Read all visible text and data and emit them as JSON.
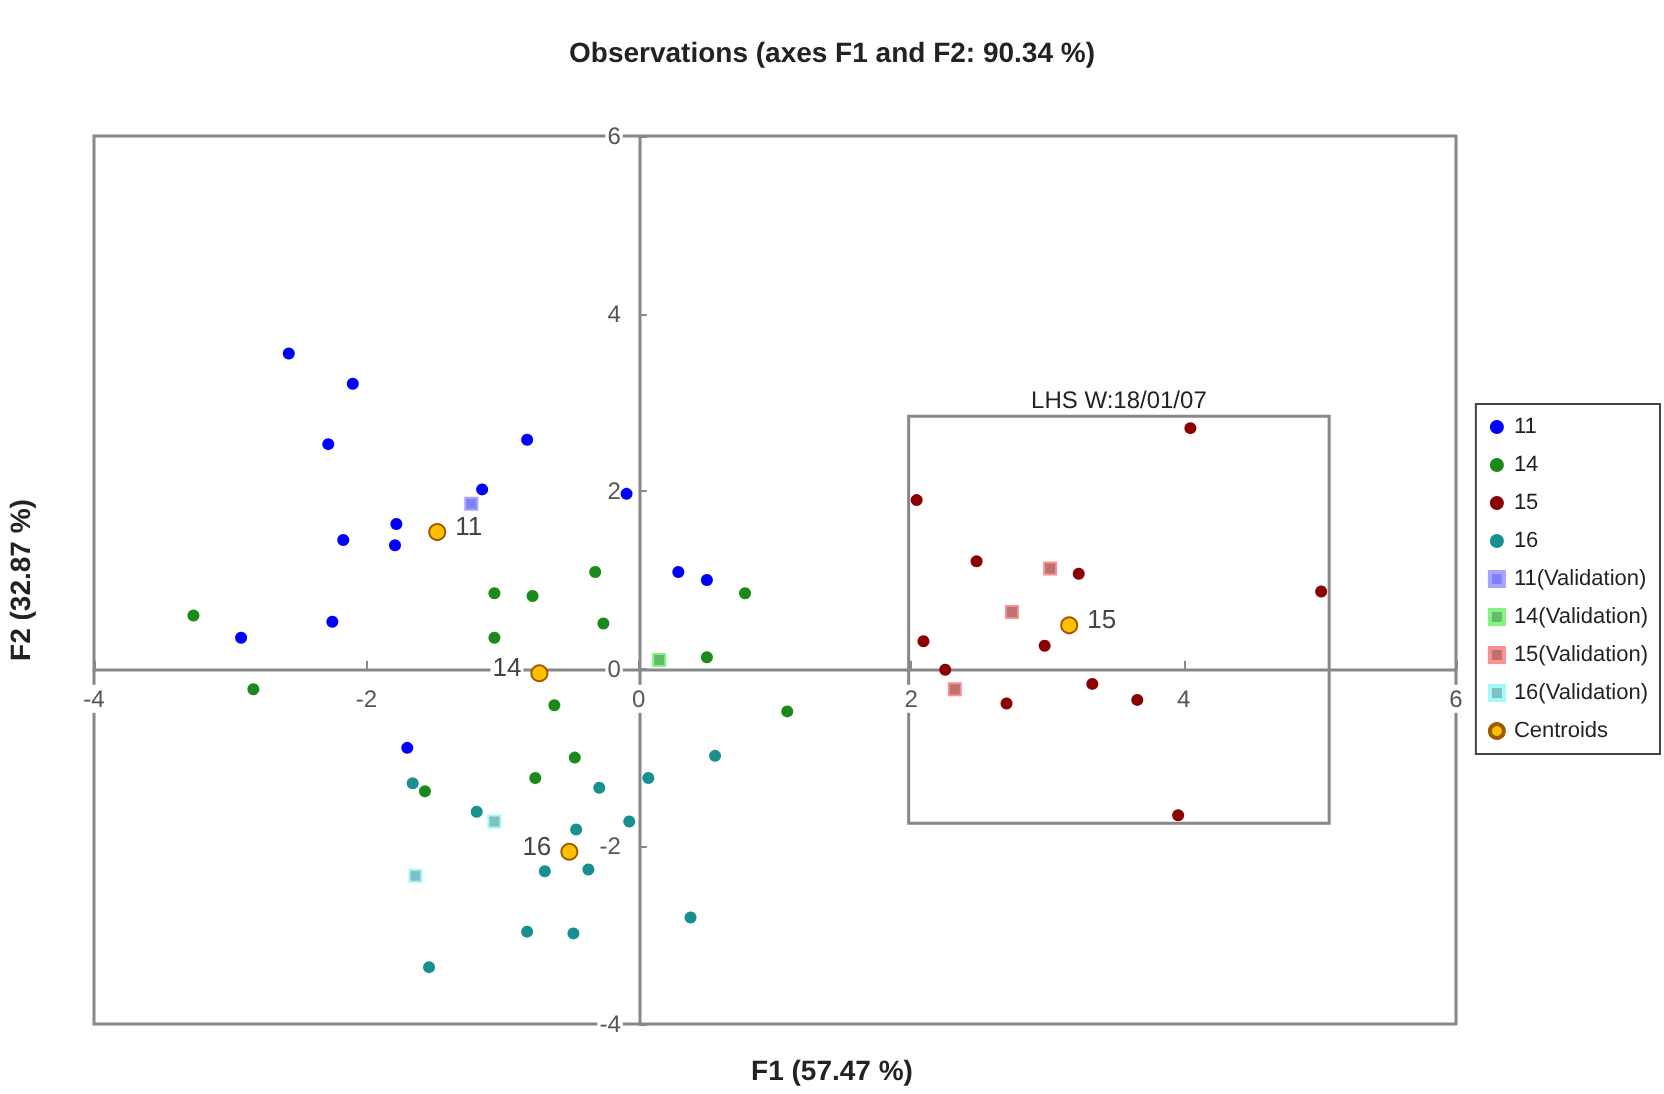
{
  "chart_data": {
    "type": "scatter",
    "title": "Observations (axes F1 and F2: 90.34 %)",
    "xlabel": "F1 (57.47 %)",
    "ylabel": "F2 (32.87 %)",
    "xlim": [
      -4,
      6
    ],
    "xticks": [
      -4,
      -2,
      0,
      2,
      4,
      6
    ],
    "ylim": [
      -4,
      6
    ],
    "yticks": [
      -4,
      -2,
      0,
      2,
      4,
      6
    ],
    "legend": "right",
    "annotations": [
      "LHS W:18/01/07",
      {
        "text": "11",
        "x": -1.48,
        "y": 1.54
      },
      {
        "text": "14",
        "x": -0.73,
        "y": -0.05
      },
      {
        "text": "15",
        "x": 3.16,
        "y": 0.49
      },
      {
        "text": "16",
        "x": -0.51,
        "y": -2.06
      }
    ],
    "series": [
      {
        "name": "11",
        "color": "#0000ff",
        "marker": "circle",
        "x": [
          -2.57,
          -2.1,
          -2.28,
          -0.82,
          -1.15,
          -2.17,
          -1.78,
          -1.79,
          -0.09,
          -2.25,
          -2.92,
          -1.7,
          0.29,
          0.5
        ],
        "values": [
          3.55,
          3.21,
          2.53,
          2.58,
          2.02,
          1.45,
          1.63,
          1.39,
          1.97,
          0.53,
          0.35,
          -0.89,
          1.09,
          1.0
        ]
      },
      {
        "name": "14",
        "color": "#1a8a1a",
        "marker": "circle",
        "x": [
          -3.27,
          -2.83,
          -1.06,
          -0.32,
          -0.26,
          -0.78,
          -1.06,
          0.78,
          0.5,
          1.09,
          -0.62,
          -0.47,
          -0.76,
          -1.57
        ],
        "values": [
          0.6,
          -0.23,
          0.85,
          1.09,
          0.51,
          0.82,
          0.35,
          0.85,
          0.13,
          -0.48,
          -0.41,
          -1.0,
          -1.23,
          -1.38
        ]
      },
      {
        "name": "15",
        "color": "#8b0000",
        "marker": "circle",
        "x": [
          4.05,
          2.04,
          2.48,
          3.23,
          5.01,
          2.09,
          2.98,
          2.25,
          3.33,
          2.7,
          3.66,
          3.96
        ],
        "values": [
          2.71,
          1.9,
          1.21,
          1.07,
          0.87,
          0.31,
          0.26,
          -0.01,
          -0.17,
          -0.39,
          -0.35,
          -1.65
        ]
      },
      {
        "name": "16",
        "color": "#1a8f8f",
        "marker": "circle",
        "x": [
          -1.66,
          -1.19,
          -0.29,
          0.07,
          0.56,
          -0.07,
          -0.46,
          -0.37,
          -0.69,
          -0.82,
          -0.48,
          0.38,
          -1.54
        ],
        "values": [
          -1.29,
          -1.61,
          -1.34,
          -1.23,
          -0.98,
          -1.72,
          -1.81,
          -2.26,
          -2.28,
          -2.96,
          -2.98,
          -2.8,
          -3.36
        ]
      },
      {
        "name": "11(Validation)",
        "color": "#8080ff",
        "marker": "square",
        "x": [
          -1.23
        ],
        "values": [
          1.86
        ]
      },
      {
        "name": "14(Validation)",
        "color": "#66bb66",
        "marker": "square",
        "x": [
          0.15
        ],
        "values": [
          0.1
        ]
      },
      {
        "name": "15(Validation)",
        "color": "#c07070",
        "marker": "square",
        "x": [
          3.02,
          2.74,
          2.32
        ],
        "values": [
          1.13,
          0.64,
          -0.23
        ]
      },
      {
        "name": "16(Validation)",
        "color": "#80c0c0",
        "marker": "square",
        "x": [
          -1.06,
          -1.64
        ],
        "values": [
          -1.72,
          -2.33
        ]
      },
      {
        "name": "Centroids",
        "color": "#ffc000",
        "marker": "circle",
        "x": [
          -1.48,
          -0.73,
          3.16,
          -0.51
        ],
        "values": [
          1.54,
          -0.05,
          0.49,
          -2.06
        ]
      }
    ]
  }
}
